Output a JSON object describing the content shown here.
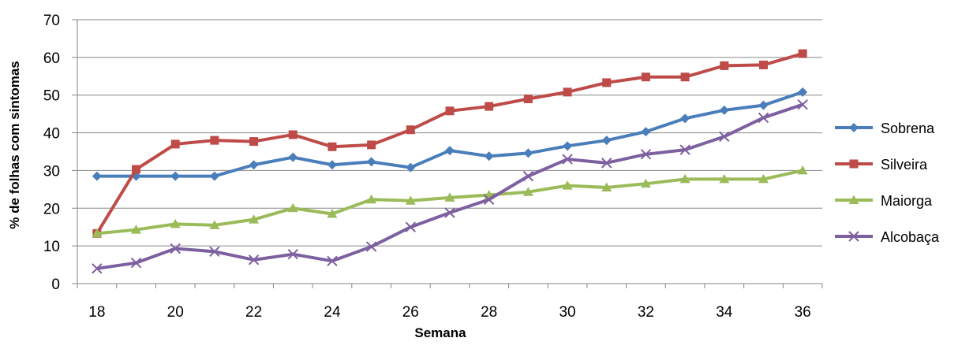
{
  "chart_data": {
    "type": "line",
    "title": "",
    "xlabel": "Semana",
    "ylabel": "% de folhas com sintomas",
    "x": [
      18,
      19,
      20,
      21,
      22,
      23,
      24,
      25,
      26,
      27,
      28,
      29,
      30,
      31,
      32,
      33,
      34,
      35,
      36
    ],
    "xticks": [
      18,
      20,
      22,
      24,
      26,
      28,
      30,
      32,
      34,
      36
    ],
    "xlim": [
      18,
      36
    ],
    "ylim": [
      0,
      70
    ],
    "yticks": [
      0,
      10,
      20,
      30,
      40,
      50,
      60,
      70
    ],
    "grid": "horizontal",
    "legend_position": "right",
    "series": [
      {
        "name": "Sobrena",
        "color": "#4a7ebb",
        "marker": "diamond",
        "values": [
          28.5,
          28.5,
          28.5,
          28.5,
          31.5,
          33.5,
          31.5,
          32.3,
          30.8,
          35.3,
          33.8,
          34.6,
          36.5,
          38.0,
          40.3,
          43.8,
          46.0,
          47.3,
          50.8
        ]
      },
      {
        "name": "Silveira",
        "color": "#be4b48",
        "marker": "square",
        "values": [
          13.3,
          30.3,
          37.0,
          38.0,
          37.7,
          39.5,
          36.3,
          36.8,
          40.8,
          45.8,
          47.0,
          49.0,
          50.8,
          53.3,
          54.8,
          54.8,
          57.8,
          58.0,
          61.0
        ]
      },
      {
        "name": "Maiorga",
        "color": "#9bbb59",
        "marker": "triangle",
        "values": [
          13.3,
          14.3,
          15.8,
          15.5,
          17.0,
          20.0,
          18.5,
          22.3,
          22.0,
          22.8,
          23.5,
          24.3,
          26.0,
          25.5,
          26.5,
          27.7,
          27.7,
          27.7,
          30.0
        ]
      },
      {
        "name": "Alcobaça",
        "color": "#7d60a0",
        "marker": "x",
        "values": [
          4.0,
          5.5,
          9.3,
          8.5,
          6.3,
          7.8,
          6.0,
          9.8,
          15.0,
          18.8,
          22.3,
          28.5,
          33.0,
          32.0,
          34.3,
          35.5,
          39.0,
          44.0,
          47.5
        ]
      }
    ]
  }
}
